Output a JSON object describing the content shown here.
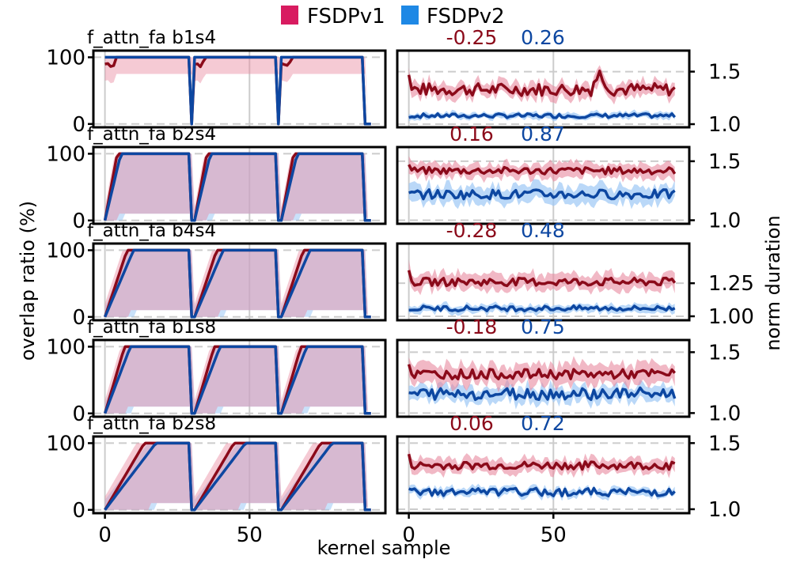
{
  "legend": [
    {
      "label": "FSDPv1",
      "color": "#d81b60"
    },
    {
      "label": "FSDPv2",
      "color": "#1e88e5"
    }
  ],
  "colors": {
    "v1_line": "#8b0a1a",
    "v1_band": "#e8899f",
    "v1_mid": "#c0567a",
    "v2_line": "#0d47a1",
    "v2_band": "#9cc8f5",
    "v2_mid": "#9098d8",
    "ref_line": "#cccccc",
    "dashed": "#cccccc"
  },
  "axes_text": {
    "left_ylabel": "overlap ratio (%)",
    "right_ylabel": "norm duration",
    "xlabel": "kernel sample"
  },
  "chart_data": [
    {
      "title": "f_attn_fa  b1s4",
      "corr_v1": "-0.25",
      "corr_v2": "0.26",
      "rise_len": 2,
      "right_ticks": [
        "1.5",
        "1.0"
      ],
      "right_tick_vals": [
        1.5,
        1.0
      ],
      "right_ylim": [
        0.97,
        1.7
      ],
      "v1_base": 1.33,
      "v1_amp": 0.06,
      "v2_base": 1.08,
      "v2_amp": 0.02,
      "band_v1": 0.07,
      "band_v2": 0.03
    },
    {
      "title": "f_attn_fa  b2s4",
      "corr_v1": "0.16",
      "corr_v2": "0.87",
      "rise_len": 5,
      "right_ticks": [
        "1.5",
        "1.0"
      ],
      "right_tick_vals": [
        1.5,
        1.0
      ],
      "right_ylim": [
        0.97,
        1.62
      ],
      "v1_base": 1.42,
      "v1_amp": 0.03,
      "v2_base": 1.22,
      "v2_amp": 0.04,
      "band_v1": 0.06,
      "band_v2": 0.07
    },
    {
      "title": "f_attn_fa  b4s4",
      "corr_v1": "-0.28",
      "corr_v2": "0.48",
      "rise_len": 9,
      "right_ticks": [
        "1.25",
        "1.00"
      ],
      "right_tick_vals": [
        1.25,
        1.0
      ],
      "right_ylim": [
        0.97,
        1.55
      ],
      "v1_base": 1.26,
      "v1_amp": 0.03,
      "v2_base": 1.06,
      "v2_amp": 0.02,
      "band_v1": 0.06,
      "band_v2": 0.03
    },
    {
      "title": "f_attn_fa  b1s8",
      "corr_v1": "-0.18",
      "corr_v2": "0.75",
      "rise_len": 8,
      "right_ticks": [
        "1.5",
        "1.0"
      ],
      "right_tick_vals": [
        1.5,
        1.0
      ],
      "right_ylim": [
        0.97,
        1.6
      ],
      "v1_base": 1.32,
      "v1_amp": 0.04,
      "v2_base": 1.16,
      "v2_amp": 0.05,
      "band_v1": 0.08,
      "band_v2": 0.06
    },
    {
      "title": "f_attn_fa  b2s8",
      "corr_v1": "0.06",
      "corr_v2": "0.72",
      "rise_len": 16,
      "right_ticks": [
        "1.5",
        "1.0"
      ],
      "right_tick_vals": [
        1.5,
        1.0
      ],
      "right_ylim": [
        0.97,
        1.55
      ],
      "v1_base": 1.33,
      "v1_amp": 0.03,
      "v2_base": 1.13,
      "v2_amp": 0.03,
      "band_v1": 0.05,
      "band_v2": 0.03
    }
  ],
  "shared_axes": {
    "left_yticks": [
      "100",
      "0"
    ],
    "left_ytick_vals": [
      100,
      0
    ],
    "xticks": [
      "0",
      "50"
    ],
    "xtick_vals": [
      0,
      50
    ],
    "xlim": [
      -4,
      97
    ],
    "left_ylim": [
      -5,
      110
    ],
    "n_samples": 93,
    "groups": [
      [
        0,
        30
      ],
      [
        31,
        60
      ],
      [
        61,
        90
      ]
    ]
  }
}
